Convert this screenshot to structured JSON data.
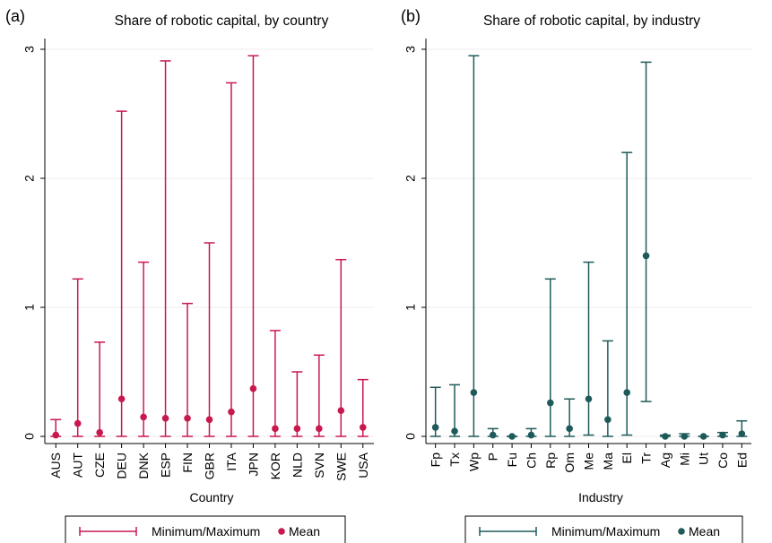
{
  "chart_data": [
    {
      "type": "error-bar",
      "panel_label": "(a)",
      "title": "Share of robotic capital, by country",
      "xlabel": "Country",
      "ylabel": "",
      "ylim": [
        0,
        3
      ],
      "yticks": [
        0,
        1,
        2,
        3
      ],
      "grid": true,
      "color": "#c8194f",
      "categories": [
        "AUS",
        "AUT",
        "CZE",
        "DEU",
        "DNK",
        "ESP",
        "FIN",
        "GBR",
        "ITA",
        "JPN",
        "KOR",
        "NLD",
        "SVN",
        "SWE",
        "USA"
      ],
      "min": [
        0,
        0,
        0,
        0,
        0,
        0,
        0,
        0,
        0,
        0,
        0,
        0,
        0,
        0,
        0
      ],
      "max": [
        0.13,
        1.22,
        0.73,
        2.52,
        1.35,
        2.91,
        1.03,
        1.5,
        2.74,
        2.95,
        0.82,
        0.5,
        0.63,
        1.37,
        0.44
      ],
      "mean": [
        0.01,
        0.1,
        0.03,
        0.29,
        0.15,
        0.14,
        0.14,
        0.13,
        0.19,
        0.37,
        0.06,
        0.06,
        0.06,
        0.2,
        0.07
      ],
      "legend": {
        "range_label": "Minimum/Maximum",
        "mean_label": "Mean",
        "position": "bottom"
      }
    },
    {
      "type": "error-bar",
      "panel_label": "(b)",
      "title": "Share of robotic capital, by industry",
      "xlabel": "Industry",
      "ylabel": "",
      "ylim": [
        0,
        3
      ],
      "yticks": [
        0,
        1,
        2,
        3
      ],
      "grid": true,
      "color": "#1f5a5a",
      "categories": [
        "Fp",
        "Tx",
        "Wp",
        "P",
        "Fu",
        "Ch",
        "Rp",
        "Om",
        "Me",
        "Ma",
        "El",
        "Tr",
        "Ag",
        "Mi",
        "Ut",
        "Co",
        "Ed"
      ],
      "min": [
        0,
        0,
        0,
        0,
        0,
        0,
        0,
        0,
        0.01,
        0,
        0.01,
        0.27,
        0,
        0,
        0,
        0,
        0
      ],
      "max": [
        0.38,
        0.4,
        2.95,
        0.06,
        0,
        0.06,
        1.22,
        0.29,
        1.35,
        0.74,
        2.2,
        2.9,
        0.01,
        0.02,
        0,
        0.03,
        0.12
      ],
      "mean": [
        0.07,
        0.04,
        0.34,
        0.01,
        0,
        0.01,
        0.26,
        0.06,
        0.29,
        0.13,
        0.34,
        1.4,
        0,
        0,
        0,
        0.01,
        0.02
      ],
      "legend": {
        "range_label": "Minimum/Maximum",
        "mean_label": "Mean",
        "position": "bottom"
      }
    }
  ]
}
